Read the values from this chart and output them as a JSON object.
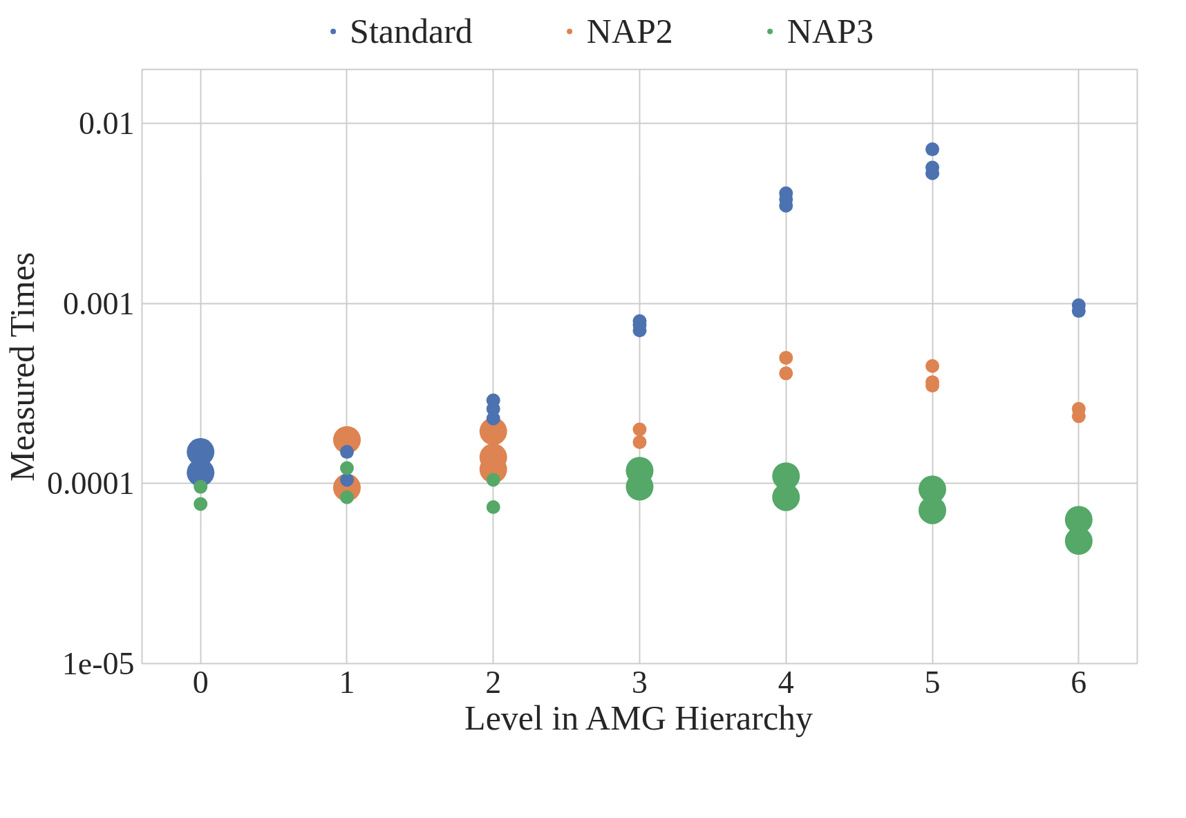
{
  "chart_data": {
    "type": "bubble",
    "xlabel": "Level in AMG Hierarchy",
    "ylabel": "Measured Times",
    "log": "y",
    "grid": true,
    "legend": "top",
    "xlim": [
      -0.4,
      6.4
    ],
    "xticks": [
      0,
      1,
      2,
      3,
      4,
      5,
      6
    ],
    "ylim": [
      1e-05,
      0.02
    ],
    "yticks": [
      {
        "value": 1e-05,
        "label": "1e-05"
      },
      0.0001,
      0.001,
      0.01
    ],
    "series": [
      {
        "name": "Standard",
        "color": "#4c72b0",
        "x": [
          0,
          0,
          1,
          1,
          2,
          2,
          2,
          3,
          3,
          3,
          4,
          4,
          4,
          5,
          5,
          5,
          6,
          6
        ],
        "values": [
          0.00015,
          0.000115,
          0.00015,
          0.000105,
          0.00029,
          0.00026,
          0.00023,
          0.0008,
          0.00076,
          0.00071,
          0.0041,
          0.0038,
          0.0035,
          0.0072,
          0.0057,
          0.0053,
          0.00098,
          0.00091
        ],
        "sizes": [
          1,
          1,
          0.25,
          0.25,
          0.25,
          0.25,
          0.25,
          0.25,
          0.25,
          0.25,
          0.25,
          0.25,
          0.25,
          0.25,
          0.25,
          0.25,
          0.25,
          0.25
        ]
      },
      {
        "name": "NAP2",
        "color": "#dd8452",
        "x": [
          1,
          1,
          2,
          2,
          2,
          3,
          3,
          4,
          4,
          5,
          5,
          5,
          6,
          6
        ],
        "values": [
          0.000175,
          9.5e-05,
          0.000195,
          0.00014,
          0.00012,
          0.0002,
          0.00017,
          0.0005,
          0.00041,
          0.00045,
          0.000366,
          0.00035,
          0.00026,
          0.000237
        ],
        "sizes": [
          1,
          1,
          1,
          1,
          1,
          0.25,
          0.25,
          0.25,
          0.25,
          0.25,
          0.25,
          0.25,
          0.25,
          0.25
        ]
      },
      {
        "name": "NAP3",
        "color": "#55a868",
        "x": [
          0,
          0,
          1,
          1,
          2,
          2,
          3,
          3,
          4,
          4,
          5,
          5,
          6,
          6
        ],
        "values": [
          9.6e-05,
          7.7e-05,
          0.000122,
          8.4e-05,
          0.000105,
          7.4e-05,
          0.000118,
          9.6e-05,
          0.00011,
          8.4e-05,
          9.3e-05,
          7.1e-05,
          6.3e-05,
          4.8e-05
        ],
        "sizes": [
          0.25,
          0.25,
          0.25,
          0.25,
          0.25,
          0.25,
          1,
          1,
          1,
          1,
          1,
          1,
          1,
          1
        ]
      }
    ]
  }
}
